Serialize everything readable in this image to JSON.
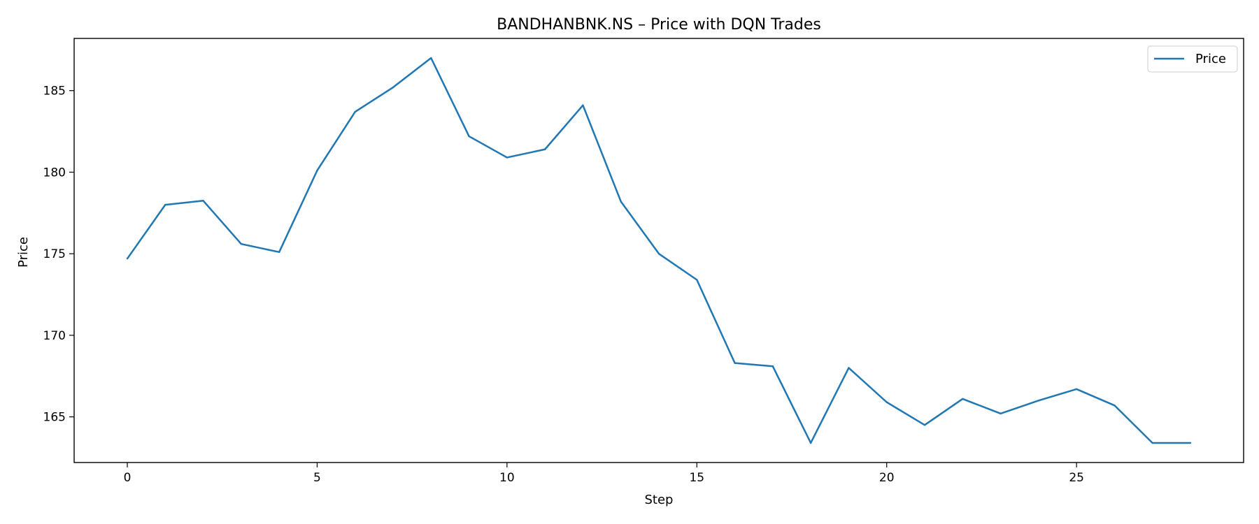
{
  "chart_data": {
    "type": "line",
    "title": "BANDHANBNK.NS – Price with DQN Trades",
    "xlabel": "Step",
    "ylabel": "Price",
    "xlim": [
      -1.4,
      29.4
    ],
    "ylim": [
      162.2,
      188.2
    ],
    "xticks": [
      0,
      5,
      10,
      15,
      20,
      25
    ],
    "yticks": [
      165,
      170,
      175,
      180,
      185
    ],
    "grid": false,
    "legend_position": "top-right",
    "series": [
      {
        "name": "Price",
        "color": "#1f77b4",
        "x": [
          0,
          1,
          2,
          3,
          4,
          5,
          6,
          7,
          8,
          9,
          10,
          11,
          12,
          13,
          14,
          15,
          16,
          17,
          18,
          19,
          20,
          21,
          22,
          23,
          24,
          25,
          26,
          27,
          28
        ],
        "values": [
          174.7,
          178.0,
          178.25,
          175.6,
          175.1,
          180.1,
          183.7,
          185.2,
          187.0,
          182.2,
          180.9,
          181.4,
          184.1,
          178.2,
          175.0,
          173.4,
          168.3,
          168.1,
          163.4,
          168.0,
          165.9,
          164.5,
          166.1,
          165.2,
          166.0,
          166.7,
          165.7,
          163.4,
          163.4
        ]
      }
    ]
  }
}
